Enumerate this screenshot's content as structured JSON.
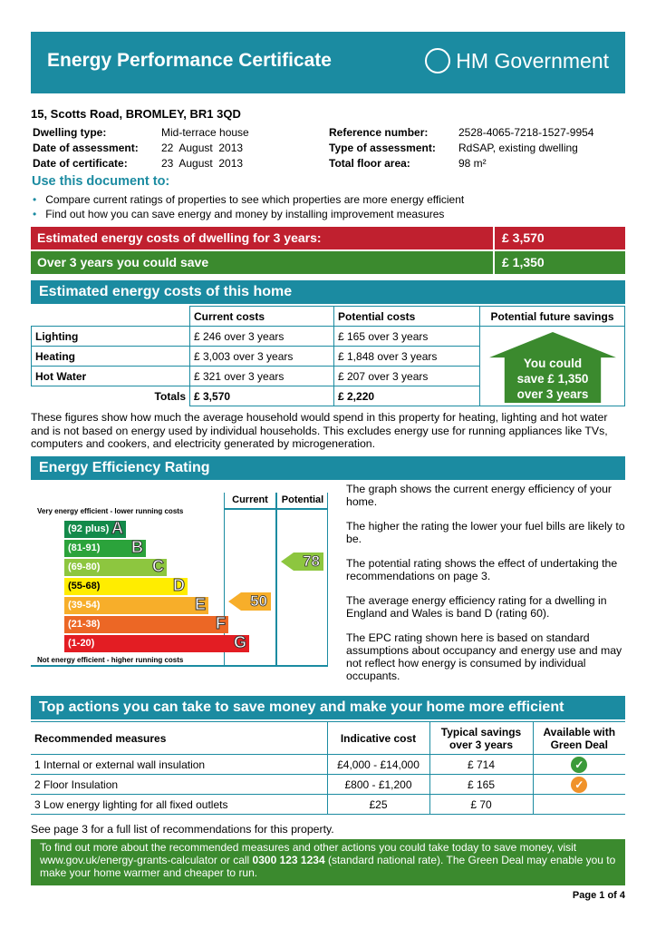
{
  "header": {
    "title": "Energy Performance Certificate",
    "logo": "HM Government"
  },
  "address": "15, Scotts Road, BROMLEY, BR1 3QD",
  "details_left": [
    {
      "label": "Dwelling type:",
      "value": "Mid-terrace house"
    },
    {
      "label": "Date of assessment:",
      "value": "22  August  2013"
    },
    {
      "label": "Date of certificate:",
      "value": "23  August  2013"
    }
  ],
  "details_right": [
    {
      "label": "Reference number:",
      "value": "2528-4065-7218-1527-9954"
    },
    {
      "label": "Type of assessment:",
      "value": "RdSAP, existing dwelling"
    },
    {
      "label": "Total floor area:",
      "value": "98 m²"
    }
  ],
  "use": {
    "title": "Use this document to:",
    "bullets": [
      "Compare current ratings of properties to see which properties are more energy efficient",
      "Find out how you can save energy and money by installing improvement measures"
    ]
  },
  "summary": {
    "cost_label": "Estimated energy costs of dwelling for 3 years:",
    "cost_value": "£ 3,570",
    "save_label": "Over 3 years you could save",
    "save_value": "£ 1,350",
    "red": "#c0202f",
    "green": "#3b8a2e"
  },
  "costs": {
    "title": "Estimated energy costs of this home",
    "headers": [
      "",
      "Current costs",
      "Potential costs",
      "Potential future savings"
    ],
    "rows": [
      [
        "Lighting",
        "£ 246 over 3 years",
        "£ 165 over 3 years"
      ],
      [
        "Heating",
        "£ 3,003 over 3 years",
        "£ 1,848 over 3 years"
      ],
      [
        "Hot Water",
        "£ 321 over 3 years",
        "£ 207 over 3 years"
      ]
    ],
    "totals": [
      "Totals",
      "£ 3,570",
      "£ 2,220"
    ],
    "house_text": [
      "You could",
      "save £ 1,350",
      "over 3 years"
    ],
    "note": "These figures show how much the average household would spend in this property for heating, lighting and hot water and is not based on energy used by individual households. This excludes energy use for running appliances like TVs, computers and cookers, and electricity generated by microgeneration."
  },
  "rating": {
    "title": "Energy Efficiency Rating",
    "col_current": "Current",
    "col_potential": "Potential",
    "top_note": "Very energy efficient - lower running costs",
    "bottom_note": "Not energy efficient - higher running costs",
    "bands": [
      {
        "range": "(92 plus)",
        "letter": "A",
        "color": "#138a4a"
      },
      {
        "range": "(81-91)",
        "letter": "B",
        "color": "#2ba33b"
      },
      {
        "range": "(69-80)",
        "letter": "C",
        "color": "#8dc63f"
      },
      {
        "range": "(55-68)",
        "letter": "D",
        "color": "#ffed00"
      },
      {
        "range": "(39-54)",
        "letter": "E",
        "color": "#f7ae2a"
      },
      {
        "range": "(21-38)",
        "letter": "F",
        "color": "#ec6725"
      },
      {
        "range": "(1-20)",
        "letter": "G",
        "color": "#e31d23"
      }
    ],
    "current": "50",
    "potential": "78",
    "text": [
      "The graph shows the current energy efficiency of your home.",
      "The higher the rating the lower your fuel bills are likely to be.",
      "The potential rating shows the effect of undertaking the recommendations on page 3.",
      "The average energy efficiency rating for a dwelling in England and Wales is band D (rating 60).",
      "The EPC rating shown here is based on standard assumptions about occupancy and energy use and may not reflect how energy is consumed by individual occupants."
    ]
  },
  "actions": {
    "title": "Top actions you can take to save money and make your home more efficient",
    "headers": [
      "Recommended measures",
      "Indicative cost",
      "Typical savings over 3 years",
      "Available with Green Deal"
    ],
    "rows": [
      [
        "1  Internal or external wall insulation",
        "£4,000 - £14,000",
        "£ 714",
        "green-check"
      ],
      [
        "2  Floor Insulation",
        "£800 - £1,200",
        "£ 165",
        "orange-check"
      ],
      [
        "3  Low energy lighting for all fixed outlets",
        "£25",
        "£ 70",
        ""
      ]
    ],
    "see": "See page 3 for a full list of recommendations for this property.",
    "info_a": "To find out more about the recommended measures and other actions you could take today to save money, visit www.gov.uk/energy-grants-calculator or call ",
    "info_phone": "0300 123 1234",
    "info_b": " (standard national rate). The Green Deal may enable you to make your home warmer and cheaper to run."
  },
  "footer": "Page 1 of 4"
}
